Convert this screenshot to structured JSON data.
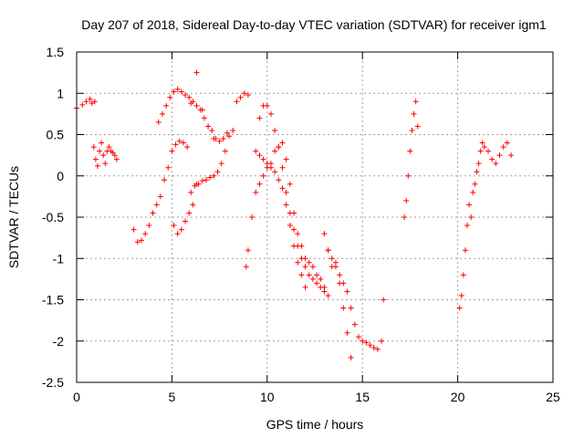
{
  "chart_data": {
    "type": "scatter",
    "title": "Day 207 of 2018, Sidereal Day-to-day VTEC variation (SDTVAR) for receiver igm1",
    "xlabel": "GPS time / hours",
    "ylabel": "SDTVAR / TECUs",
    "xlim": [
      0,
      25
    ],
    "ylim": [
      -2.5,
      1.5
    ],
    "xticks": [
      0,
      5,
      10,
      15,
      20,
      25
    ],
    "xtick_labels": [
      "0",
      "5",
      "10",
      "15",
      "20",
      "25"
    ],
    "yticks": [
      1.5,
      1,
      0.5,
      0,
      -0.5,
      -1,
      -1.5,
      -2,
      -2.5
    ],
    "ytick_labels": [
      "1.5",
      "1",
      "0.5",
      "0",
      "-0.5",
      "-1",
      "-1.5",
      "-2",
      "-2.5"
    ],
    "grid": true,
    "marker": "plus",
    "marker_color": "#ff0000",
    "series": [
      {
        "name": "s1",
        "x": [
          0.0,
          0.3,
          0.5,
          0.7,
          0.8,
          0.95
        ],
        "y": [
          0.82,
          0.86,
          0.9,
          0.93,
          0.88,
          0.9
        ]
      },
      {
        "name": "s2",
        "x": [
          0.9,
          1.0,
          1.1,
          1.2,
          1.3,
          1.4,
          1.5,
          1.6,
          1.7,
          1.8,
          1.9,
          2.0,
          2.1
        ],
        "y": [
          0.35,
          0.2,
          0.12,
          0.3,
          0.4,
          0.25,
          0.15,
          0.3,
          0.35,
          0.3,
          0.28,
          0.25,
          0.2
        ]
      },
      {
        "name": "s3",
        "x": [
          3.0,
          3.2,
          3.4,
          3.6,
          3.8,
          4.0,
          4.2,
          4.4,
          4.6,
          4.8,
          5.0,
          5.2,
          5.4,
          5.6,
          5.8,
          6.0,
          6.2,
          6.4,
          6.6,
          6.8,
          7.0,
          7.2,
          7.4,
          7.6,
          7.8,
          8.0,
          8.2
        ],
        "y": [
          -0.65,
          -0.8,
          -0.78,
          -0.7,
          -0.6,
          -0.45,
          -0.35,
          -0.25,
          -0.05,
          0.1,
          0.3,
          0.38,
          0.42,
          0.4,
          0.35,
          -0.2,
          -0.12,
          -0.1,
          -0.06,
          -0.05,
          -0.02,
          0.0,
          0.05,
          0.15,
          0.3,
          0.48,
          0.55
        ]
      },
      {
        "name": "s4",
        "x": [
          4.3,
          4.5,
          4.7,
          4.9,
          5.1,
          5.3,
          5.5,
          5.7,
          5.9,
          6.1,
          6.3,
          6.5,
          6.7,
          6.9,
          7.1,
          7.3,
          7.5,
          7.7,
          7.9
        ],
        "y": [
          0.65,
          0.75,
          0.85,
          0.95,
          1.02,
          1.05,
          1.02,
          0.98,
          0.95,
          0.9,
          0.85,
          0.8,
          0.7,
          0.6,
          0.55,
          0.45,
          0.42,
          0.45,
          0.52
        ]
      },
      {
        "name": "s5",
        "x": [
          5.1,
          5.3,
          5.5,
          5.7,
          5.9,
          6.1,
          6.3
        ],
        "y": [
          -0.6,
          -0.7,
          -0.65,
          -0.55,
          -0.45,
          -0.35,
          -0.1
        ]
      },
      {
        "name": "s6",
        "x": [
          6.0,
          6.3,
          6.6,
          6.9,
          7.2
        ],
        "y": [
          0.88,
          1.25,
          0.8,
          0.6,
          0.45
        ]
      },
      {
        "name": "s7",
        "x": [
          8.4,
          8.6,
          8.8,
          9.0
        ],
        "y": [
          0.9,
          0.95,
          1.0,
          0.98
        ]
      },
      {
        "name": "s8",
        "x": [
          8.9,
          9.0,
          9.2,
          9.4,
          9.6,
          9.8,
          10.0,
          10.2,
          10.4,
          10.6,
          10.8,
          11.0,
          11.2,
          11.4,
          11.6,
          11.8,
          12.0,
          12.2,
          12.4,
          12.6,
          12.8,
          13.0
        ],
        "y": [
          -1.1,
          -0.9,
          -0.5,
          0.3,
          0.7,
          0.85,
          0.85,
          0.75,
          0.55,
          0.35,
          0.1,
          -0.2,
          -0.45,
          -0.65,
          -0.85,
          -1.0,
          -1.1,
          -1.2,
          -1.25,
          -1.3,
          -1.35,
          -1.4
        ]
      },
      {
        "name": "s9",
        "x": [
          9.4,
          9.6,
          9.8,
          10.0,
          10.2,
          10.4,
          10.6,
          10.8,
          11.0,
          11.2,
          11.4,
          11.6,
          11.8,
          12.0,
          12.2,
          12.4,
          12.6,
          12.8,
          13.0,
          13.2
        ],
        "y": [
          -0.2,
          -0.1,
          0.0,
          0.1,
          0.15,
          0.3,
          0.35,
          0.4,
          0.2,
          -0.1,
          -0.45,
          -0.7,
          -0.85,
          -1.0,
          -1.05,
          -1.1,
          -1.2,
          -1.25,
          -1.35,
          -1.45
        ]
      },
      {
        "name": "s10",
        "x": [
          9.6,
          9.8,
          10.0,
          10.2,
          10.4,
          10.6,
          10.8,
          11.0,
          11.2,
          11.4,
          11.6,
          11.8,
          12.0
        ],
        "y": [
          0.25,
          0.2,
          0.15,
          0.1,
          0.05,
          -0.05,
          -0.15,
          -0.35,
          -0.6,
          -0.85,
          -1.05,
          -1.2,
          -1.35
        ]
      },
      {
        "name": "s11",
        "x": [
          13.0,
          13.2,
          13.4,
          13.6,
          13.8,
          14.0,
          14.2,
          14.4
        ],
        "y": [
          -0.7,
          -0.9,
          -1.1,
          -1.05,
          -1.3,
          -1.6,
          -1.9,
          -2.2
        ]
      },
      {
        "name": "s12",
        "x": [
          13.2,
          13.4,
          13.6,
          13.8,
          14.0,
          14.2,
          14.4,
          14.6,
          14.8,
          15.0,
          15.2,
          15.4,
          15.6,
          15.8,
          16.0,
          16.1
        ],
        "y": [
          -0.9,
          -1.0,
          -1.1,
          -1.2,
          -1.3,
          -1.4,
          -1.6,
          -1.8,
          -1.95,
          -2.0,
          -2.02,
          -2.05,
          -2.08,
          -2.1,
          -2.0,
          -1.5
        ]
      },
      {
        "name": "s13",
        "x": [
          17.2,
          17.3,
          17.4,
          17.5,
          17.6,
          17.7,
          17.8,
          17.9
        ],
        "y": [
          -0.5,
          -0.3,
          0.0,
          0.3,
          0.55,
          0.75,
          0.9,
          0.6
        ]
      },
      {
        "name": "s14",
        "x": [
          20.1,
          20.2,
          20.3,
          20.4,
          20.5,
          20.6,
          20.7,
          20.8,
          20.9,
          21.0,
          21.1,
          21.2,
          21.3,
          21.4,
          21.6,
          21.8,
          22.0,
          22.2,
          22.4,
          22.6,
          22.8
        ],
        "y": [
          -1.6,
          -1.45,
          -1.2,
          -0.9,
          -0.6,
          -0.35,
          -0.5,
          -0.2,
          -0.1,
          0.05,
          0.15,
          0.3,
          0.4,
          0.35,
          0.3,
          0.2,
          0.15,
          0.25,
          0.35,
          0.4,
          0.25
        ]
      }
    ]
  }
}
